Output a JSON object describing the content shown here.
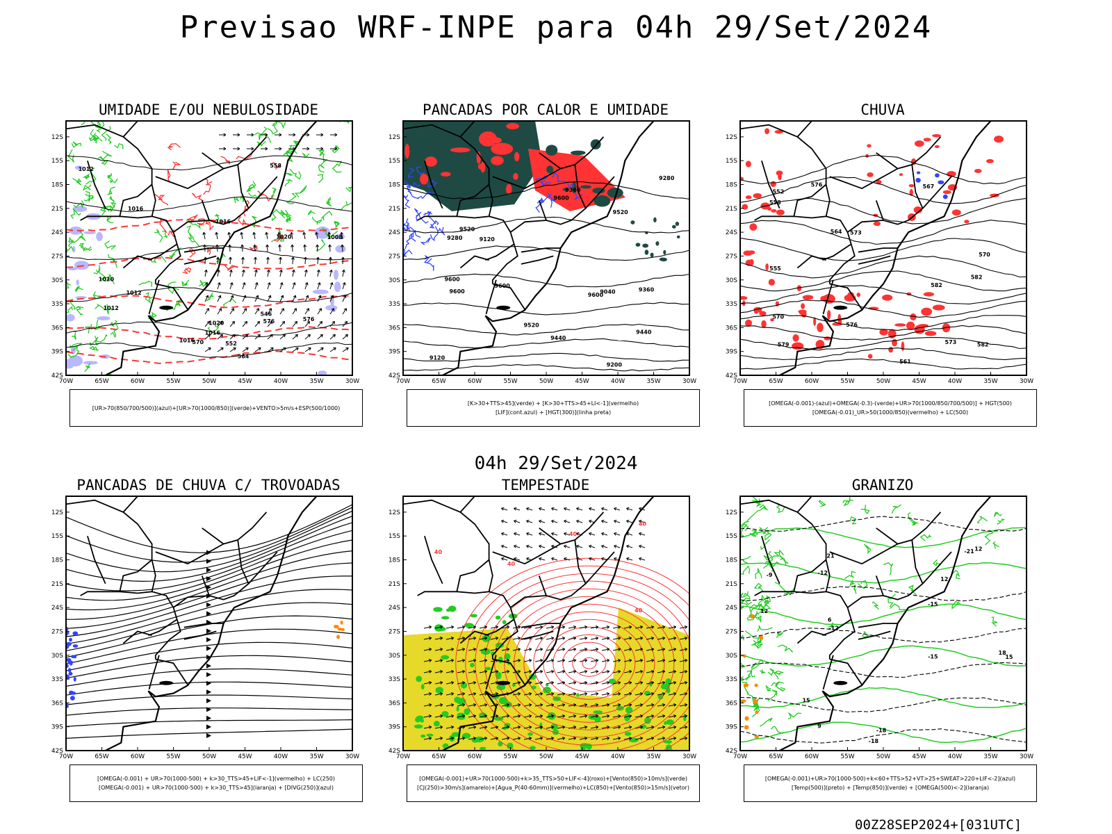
{
  "page": {
    "title": "Previsao WRF-INPE  para 04h 29/Set/2024",
    "subtitle": "04h 29/Set/2024",
    "footer": "00Z28SEP2024+[031UTC]"
  },
  "axes": {
    "lat_labels": [
      "12S",
      "15S",
      "18S",
      "21S",
      "24S",
      "27S",
      "30S",
      "33S",
      "36S",
      "39S",
      "42S"
    ],
    "lon_labels": [
      "70W",
      "65W",
      "60W",
      "55W",
      "50W",
      "45W",
      "40W",
      "35W",
      "30W"
    ]
  },
  "colors": {
    "green": "#22cc22",
    "red": "#ff3333",
    "blue": "#3344ff",
    "darkgreen": "#1f4a44",
    "yellow": "#e6d92a",
    "lavender": "#b8b8ff",
    "orange": "#ff8800"
  },
  "panels": [
    {
      "title": "UMIDADE E/OU NEBULOSIDADE",
      "legend": [
        "[UR>70(850/700/500)](azul)+[UR>70(1000/850)](verde)+VENTO>5m/s+ESP(500/1000)"
      ],
      "contour_labels": [
        "1016",
        "1020",
        "1016",
        "1012",
        "1008",
        "1012",
        "1016",
        "1020",
        "1020",
        "1016",
        "1012",
        "576",
        "570",
        "564",
        "558",
        "552",
        "546",
        "576"
      ]
    },
    {
      "title": "PANCADAS POR CALOR E UMIDADE",
      "legend": [
        "[K>30+TTS>45](verde) + [K>30+TTS>45+LI<-1](vermelho)",
        "[LIF](cont.azul) + [HGT(300)](linha preta)"
      ],
      "contour_labels": [
        "9600",
        "9600",
        "9600",
        "9600",
        "9520",
        "9520",
        "9520",
        "9440",
        "9440",
        "9360",
        "9280",
        "9280",
        "9200",
        "9120",
        "9120",
        "9040",
        "9360",
        "9600"
      ]
    },
    {
      "title": "CHUVA",
      "legend": [
        "[OMEGA(-0.001)-(azul)+OMEGA(-0.3)-(verde)+UR>70(1000/850/700/500)] + HGT(500)",
        "[OMEGA(-0.01)_UR>50(1000/850)(vermelho) + LC(500)"
      ],
      "contour_labels": [
        "582",
        "582",
        "579",
        "576",
        "573",
        "573",
        "570",
        "567",
        "564",
        "561",
        "558",
        "555",
        "552",
        "582",
        "576",
        "570"
      ]
    },
    {
      "title": "PANCADAS DE CHUVA C/ TROVOADAS",
      "legend": [
        "[OMEGA(-0.001) + UR>70(1000-500) + k>30_TTS>45+LIF<-1](vermelho) + LC(250)",
        "[OMEGA(-0.001) + UR>70(1000-500) + k>30_TTS>45](laranja) + [DIVG(250)](azul)"
      ],
      "contour_labels": []
    },
    {
      "title": "TEMPESTADE",
      "legend": [
        "[OMEGA(-0.001)+UR>70(1000-500)+k>35_TTS>50+LIF<-4](roxo)+[Vento(850)>10m/s](verde)",
        "[CJ(250)>30m/s](amarelo)+[Agua_P(40-60mm)](vermelho)+LC(850)+[Vento(850)>15m/s](vetor)"
      ],
      "contour_labels": [
        "40",
        "40",
        "40",
        "40",
        "40"
      ]
    },
    {
      "title": "GRANIZO",
      "legend": [
        "[OMEGA(-0.001)+UR>70(1000-500)+k<60+TTS>52+VT>25+SWEAT>220+LIF<-2](azul)",
        "[Temp(500)](preto) + [Temp(850)](verde) + [OMEGA(500)<-2](laranja)"
      ],
      "contour_labels": [
        "-9",
        "-12",
        "-15",
        "-18",
        "-21",
        "-18",
        "-15",
        "-12",
        "12",
        "15",
        "18",
        "21",
        "12",
        "15",
        "12",
        "9",
        "6"
      ]
    }
  ]
}
